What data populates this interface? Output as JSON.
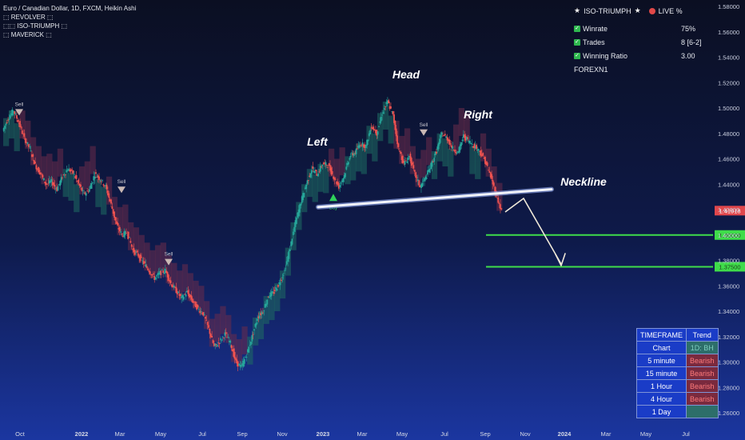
{
  "header": {
    "symbol": "Euro / Canadian Dollar, 1D, FXCM, Heikin Ashi",
    "indicators": [
      "⬚ REVOLVER ⬚",
      "⬚⬚ ISO-TRIUMPH ⬚",
      "⬚ MAVERICK ⬚"
    ]
  },
  "infobox": {
    "title": "ISO-TRIUMPH",
    "live": "LIVE %",
    "stats": [
      {
        "label": "Winrate",
        "value": "75%"
      },
      {
        "label": "Trades",
        "value": "8 [6-2]"
      },
      {
        "label": "Winning Ratio",
        "value": "3.00"
      }
    ],
    "footer": "FOREXN1"
  },
  "timeframe_table": {
    "headers": [
      "TIMEFRAME",
      "Trend"
    ],
    "rows": [
      {
        "tf": "Chart",
        "trend": "1D: BH"
      },
      {
        "tf": "5 minute",
        "trend": "Bearish"
      },
      {
        "tf": "15 minute",
        "trend": "Bearish"
      },
      {
        "tf": "1 Hour",
        "trend": "Bearish"
      },
      {
        "tf": "4 Hour",
        "trend": "Bearish"
      },
      {
        "tf": "1 Day",
        "trend": ""
      }
    ]
  },
  "colors": {
    "bull": "#26a69a",
    "bear": "#ef5350",
    "level": "#3fdc4a",
    "price_tag": "#e0474c"
  },
  "chart_data": {
    "type": "line",
    "title": "Euro / Canadian Dollar, 1D, FXCM, Heikin Ashi",
    "x_ticks": [
      "Oct",
      "2022",
      "Mar",
      "May",
      "Jul",
      "Sep",
      "Nov",
      "2023",
      "Mar",
      "May",
      "Jul",
      "Sep",
      "Nov",
      "2024",
      "Mar",
      "May",
      "Jul"
    ],
    "y_ticks": [
      "1.58000",
      "1.56000",
      "1.54000",
      "1.52000",
      "1.50000",
      "1.48000",
      "1.46000",
      "1.44000",
      "1.42000",
      "1.40000",
      "1.38000",
      "1.36000",
      "1.34000",
      "1.32000",
      "1.30000",
      "1.28000",
      "1.26000"
    ],
    "ylim": [
      1.25,
      1.59
    ],
    "series": [
      {
        "values": [
          1.482,
          1.492,
          1.498,
          1.488,
          1.476,
          1.468,
          1.455,
          1.448,
          1.44,
          1.442,
          1.436,
          1.446,
          1.452,
          1.449,
          1.44,
          1.432,
          1.436,
          1.448,
          1.444,
          1.438,
          1.424,
          1.408,
          1.4,
          1.402,
          1.388,
          1.384,
          1.378,
          1.372,
          1.366,
          1.37,
          1.372,
          1.362,
          1.356,
          1.35,
          1.355,
          1.348,
          1.342,
          1.338,
          1.326,
          1.312,
          1.316,
          1.322,
          1.315,
          1.3,
          1.296,
          1.306,
          1.32,
          1.335,
          1.34,
          1.352,
          1.355,
          1.362,
          1.372,
          1.39,
          1.41,
          1.426,
          1.44,
          1.452,
          1.448,
          1.456,
          1.455,
          1.446,
          1.438,
          1.447,
          1.462,
          1.465,
          1.472,
          1.47,
          1.486,
          1.48,
          1.496,
          1.505,
          1.494,
          1.468,
          1.456,
          1.462,
          1.448,
          1.438,
          1.445,
          1.455,
          1.466,
          1.48,
          1.476,
          1.468,
          1.465,
          1.478,
          1.474,
          1.47,
          1.466,
          1.458,
          1.446,
          1.432,
          1.419
        ]
      }
    ],
    "annotations": [
      {
        "text": "Head"
      },
      {
        "text": "Left"
      },
      {
        "text": "Right"
      },
      {
        "text": "Neckline"
      }
    ],
    "signals": [
      {
        "text": "Sell",
        "price": 1.496
      },
      {
        "text": "Sell",
        "price": 1.435
      },
      {
        "text": "Sell",
        "price": 1.378
      },
      {
        "text": "Buy",
        "price": 1.428
      },
      {
        "text": "Sell",
        "price": 1.48
      }
    ],
    "neckline": {
      "start": 1.422,
      "end": 1.436
    },
    "levels": [
      {
        "value": 1.4,
        "label": "1.40000"
      },
      {
        "value": 1.375,
        "label": "1.37500"
      }
    ],
    "current_price": {
      "value": 1.41918,
      "label": "1.41918"
    }
  }
}
